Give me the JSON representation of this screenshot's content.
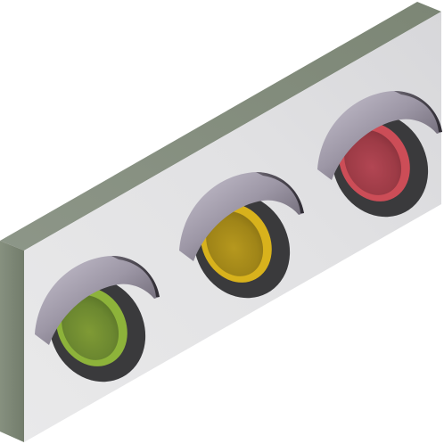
{
  "illustration": {
    "subject": "traffic-light",
    "orientation": "horizontal-isometric",
    "lamps": [
      {
        "name": "green",
        "color": "#8db33a"
      },
      {
        "name": "amber",
        "color": "#d8b21c"
      },
      {
        "name": "red",
        "color": "#cc4d57"
      }
    ],
    "colors": {
      "housing_face": "#e2e2e4",
      "housing_top": "#8a9283",
      "housing_side": "#7d8776",
      "bezel": "#3a3a3c",
      "visor_light": "#b8b3c2",
      "visor_dark": "#4b4750"
    }
  }
}
